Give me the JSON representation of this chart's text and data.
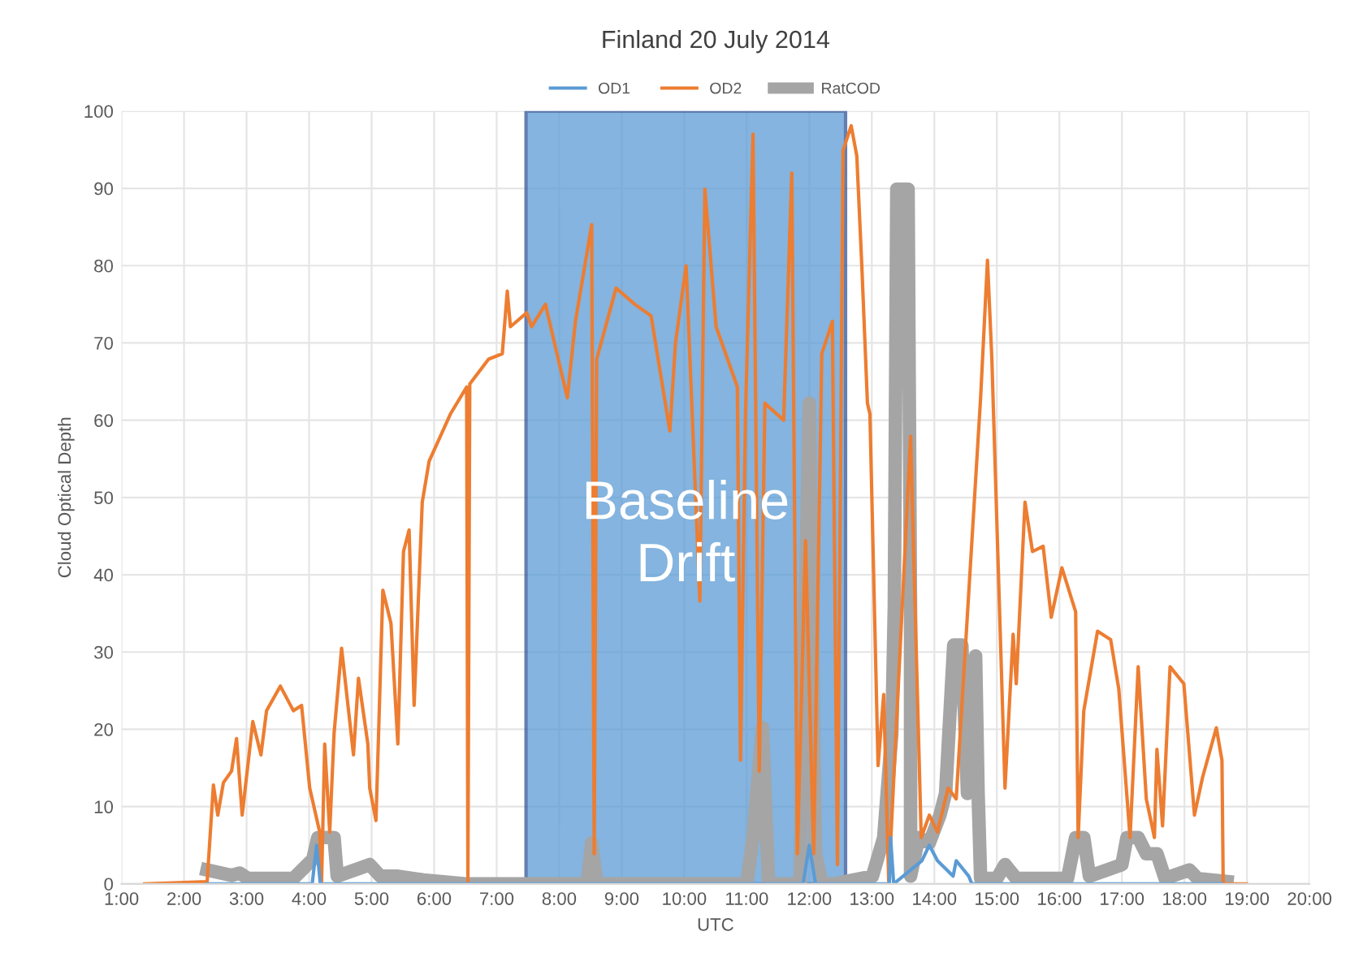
{
  "chart_data": {
    "type": "line",
    "title": "Finland 20 July 2014",
    "xlabel": "UTC",
    "ylabel": "Cloud Optical Depth",
    "xlim": [
      1,
      20
    ],
    "ylim": [
      0,
      100
    ],
    "xticks": [
      {
        "value": 1,
        "label": "1:00"
      },
      {
        "value": 2,
        "label": "2:00"
      },
      {
        "value": 3,
        "label": "3:00"
      },
      {
        "value": 4,
        "label": "4:00"
      },
      {
        "value": 5,
        "label": "5:00"
      },
      {
        "value": 6,
        "label": "6:00"
      },
      {
        "value": 7,
        "label": "7:00"
      },
      {
        "value": 8,
        "label": "8:00"
      },
      {
        "value": 9,
        "label": "9:00"
      },
      {
        "value": 10,
        "label": "10:00"
      },
      {
        "value": 11,
        "label": "11:00"
      },
      {
        "value": 12,
        "label": "12:00"
      },
      {
        "value": 13,
        "label": "13:00"
      },
      {
        "value": 14,
        "label": "14:00"
      },
      {
        "value": 15,
        "label": "15:00"
      },
      {
        "value": 16,
        "label": "16:00"
      },
      {
        "value": 17,
        "label": "17:00"
      },
      {
        "value": 18,
        "label": "18:00"
      },
      {
        "value": 19,
        "label": "19:00"
      },
      {
        "value": 20,
        "label": "20:00"
      }
    ],
    "yticks": [
      0,
      10,
      20,
      30,
      40,
      50,
      60,
      70,
      80,
      90,
      100
    ],
    "grid": true,
    "legend": "top",
    "marker": "none",
    "line_style": "solid",
    "bands": [
      {
        "axis": "x",
        "from": 7.47,
        "to": 12.58,
        "label": "Baseline Drift",
        "color": "#5b9bd5"
      }
    ],
    "series": [
      {
        "name": "OD1",
        "color": "#5b9bd5",
        "x": [
          2.37,
          4.05,
          4.12,
          4.18,
          11.9,
          12.0,
          12.1,
          13.28,
          13.3,
          13.35,
          13.8,
          13.92,
          14.05,
          14.3,
          14.35,
          14.45,
          14.55,
          14.6,
          18.6
        ],
        "values": [
          0,
          0,
          5,
          0,
          0,
          5,
          0,
          0,
          6,
          0,
          3,
          5,
          3,
          1,
          3,
          2,
          1,
          0,
          0
        ]
      },
      {
        "name": "OD2",
        "color": "#ed7d31",
        "x": [
          1.37,
          2.37,
          2.47,
          2.54,
          2.63,
          2.76,
          2.84,
          2.93,
          3.1,
          3.23,
          3.32,
          3.54,
          3.75,
          3.88,
          4.01,
          4.17,
          4.2,
          4.25,
          4.33,
          4.4,
          4.52,
          4.71,
          4.79,
          4.94,
          4.97,
          5.07,
          5.18,
          5.31,
          5.42,
          5.51,
          5.6,
          5.68,
          5.81,
          5.92,
          6.26,
          6.52,
          6.54,
          6.57,
          6.87,
          7.09,
          7.17,
          7.22,
          7.48,
          7.56,
          7.78,
          8.13,
          8.26,
          8.52,
          8.56,
          8.6,
          8.91,
          9.21,
          9.47,
          9.77,
          9.86,
          10.03,
          10.25,
          10.33,
          10.51,
          10.85,
          10.9,
          10.98,
          11.1,
          11.2,
          11.29,
          11.59,
          11.72,
          11.81,
          11.94,
          12.07,
          12.2,
          12.37,
          12.45,
          12.54,
          12.67,
          12.76,
          12.84,
          12.93,
          12.97,
          13.1,
          13.19,
          13.27,
          13.62,
          13.79,
          13.92,
          14.05,
          14.22,
          14.35,
          14.74,
          14.85,
          14.92,
          15.13,
          15.26,
          15.31,
          15.45,
          15.57,
          15.74,
          15.87,
          16.04,
          16.26,
          16.3,
          16.39,
          16.61,
          16.82,
          16.95,
          17.13,
          17.26,
          17.39,
          17.52,
          17.56,
          17.65,
          17.77,
          17.99,
          18.16,
          18.29,
          18.51,
          18.6,
          18.62,
          18.99
        ],
        "values": [
          0,
          0.3,
          12.8,
          8.9,
          13.1,
          14.6,
          18.8,
          8.9,
          21,
          16.7,
          22.4,
          25.6,
          22.4,
          23.1,
          12.4,
          6.7,
          0.3,
          18.1,
          6.7,
          19.5,
          30.5,
          16.7,
          26.6,
          18.1,
          12.4,
          8.2,
          38,
          33.7,
          18.1,
          43,
          45.8,
          23.1,
          49.4,
          54.7,
          60.8,
          64.3,
          0.3,
          64.7,
          67.9,
          68.6,
          76.7,
          72.1,
          73.9,
          72.1,
          75,
          62.9,
          72.8,
          85.3,
          3.9,
          67.9,
          77.1,
          75,
          73.5,
          58.6,
          70,
          80,
          36.6,
          89.9,
          72.1,
          64.3,
          16,
          60.8,
          97,
          14.6,
          62.2,
          60,
          92,
          3.9,
          44.4,
          3.9,
          68.6,
          72.8,
          2.5,
          94.9,
          98.1,
          94.2,
          80,
          62.2,
          60.8,
          15.3,
          24.5,
          0.3,
          57.9,
          6,
          8.9,
          6.7,
          12.4,
          11,
          62.9,
          80.7,
          67.9,
          12.4,
          32.3,
          25.9,
          49.4,
          43,
          43.7,
          34.5,
          40.9,
          35.2,
          6,
          22.4,
          32.7,
          31.6,
          25.2,
          6,
          28.1,
          11,
          6,
          17.4,
          7.5,
          28.1,
          25.9,
          8.9,
          13.8,
          20.2,
          16,
          0,
          0
        ]
      },
      {
        "name": "RatCOD",
        "color": "#a5a5a5",
        "x": [
          2.37,
          2.76,
          2.89,
          3.02,
          3.75,
          4.06,
          4.14,
          4.4,
          4.45,
          4.97,
          5.14,
          5.4,
          5.83,
          6.5,
          8.45,
          8.52,
          8.6,
          11.0,
          11.1,
          11.25,
          11.35,
          11.85,
          12.0,
          12.1,
          12.2,
          12.4,
          12.58,
          13.01,
          13.19,
          13.32,
          13.36,
          13.4,
          13.58,
          13.62,
          13.62,
          13.75,
          13.92,
          14.09,
          14.18,
          14.31,
          14.44,
          14.53,
          14.66,
          14.7,
          14.74,
          15.0,
          15.13,
          15.31,
          16.13,
          16.26,
          16.39,
          16.48,
          17.0,
          17.08,
          17.26,
          17.39,
          17.56,
          17.69,
          18.08,
          18.21,
          18.68
        ],
        "values": [
          1.8,
          1.1,
          1.4,
          0.7,
          0.7,
          3.2,
          6,
          6,
          1,
          2.5,
          1,
          1,
          0.5,
          0,
          0,
          5.3,
          0,
          0,
          6,
          20.2,
          0,
          0,
          62.2,
          3.9,
          0,
          0,
          0.3,
          1,
          6,
          19.5,
          35.9,
          89.9,
          89.9,
          33.7,
          1,
          6,
          5.3,
          8.9,
          11.7,
          30.9,
          30.9,
          11.7,
          29.5,
          11.7,
          0.7,
          0.7,
          2.5,
          0.7,
          0.7,
          6,
          6,
          1,
          2.5,
          6,
          6,
          3.9,
          3.9,
          0.7,
          1.8,
          0.7,
          0.3
        ]
      }
    ]
  }
}
